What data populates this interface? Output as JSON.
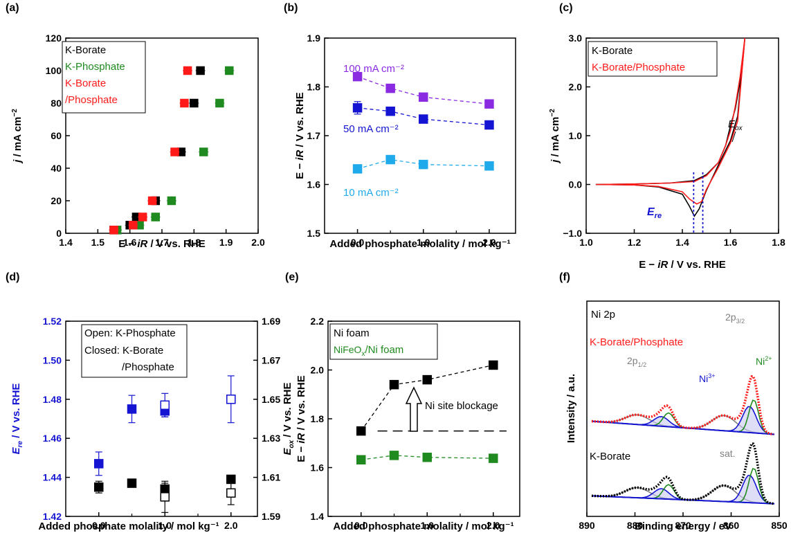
{
  "chart_data": [
    {
      "id": "a",
      "panel_label": "(a)",
      "type": "scatter",
      "xlabel": [
        "E − ",
        "iR",
        " / V vs. RHE"
      ],
      "ylabel": [
        "j",
        " / mA cm",
        "−2"
      ],
      "xlim": [
        1.4,
        2.0
      ],
      "ylim": [
        0,
        120
      ],
      "xticks": [
        "1.4",
        "1.5",
        "1.6",
        "1.7",
        "1.8",
        "1.9",
        "2.0"
      ],
      "yticks": [
        "0",
        "20",
        "40",
        "60",
        "80",
        "100",
        "120"
      ],
      "legend": [
        "K-Borate",
        "K-Phosphate",
        "K-Borate",
        "/Phosphate"
      ],
      "series": [
        {
          "name": "K-Borate",
          "color": "#000000",
          "x": [
            1.55,
            1.6,
            1.62,
            1.68,
            1.76,
            1.8,
            1.82
          ],
          "y": [
            2,
            5,
            10,
            20,
            50,
            80,
            100
          ]
        },
        {
          "name": "K-Phosphate",
          "color": "#1f8a1f",
          "x": [
            1.56,
            1.63,
            1.68,
            1.73,
            1.83,
            1.88,
            1.91
          ],
          "y": [
            2,
            5,
            10,
            20,
            50,
            80,
            100
          ]
        },
        {
          "name": "K-Borate/Phosphate",
          "color": "#ff1a1a",
          "x": [
            1.55,
            1.61,
            1.64,
            1.67,
            1.74,
            1.77,
            1.78
          ],
          "y": [
            2,
            5,
            10,
            20,
            50,
            80,
            100
          ]
        }
      ]
    },
    {
      "id": "b",
      "panel_label": "(b)",
      "type": "line",
      "xlabel": "Added phosphate molality / mol kg⁻¹",
      "ylabel": [
        "E − ",
        "iR",
        " / V vs. RHE"
      ],
      "xlim": [
        -0.5,
        2.4
      ],
      "ylim": [
        1.5,
        1.9
      ],
      "xticks": [
        "0.0",
        "0.5",
        "1.0",
        "1.5",
        "2.0"
      ],
      "yticks": [
        "1.5",
        "1.6",
        "1.7",
        "1.8",
        "1.9"
      ],
      "series": [
        {
          "name": "100 mA cm⁻²",
          "color": "#8a2be2",
          "x": [
            0,
            0.5,
            1,
            2
          ],
          "y": [
            1.821,
            1.797,
            1.779,
            1.765
          ]
        },
        {
          "name": "50 mA cm⁻²",
          "color": "#1414d2",
          "x": [
            0,
            0.5,
            1,
            2
          ],
          "y": [
            1.757,
            1.75,
            1.734,
            1.722
          ]
        },
        {
          "name": "10 mA cm⁻²",
          "color": "#1eaaeb",
          "x": [
            0,
            0.5,
            1,
            2
          ],
          "y": [
            1.632,
            1.651,
            1.641,
            1.638
          ]
        }
      ]
    },
    {
      "id": "c",
      "panel_label": "(c)",
      "type": "line",
      "xlabel": [
        "E − ",
        "iR",
        " / V vs. RHE"
      ],
      "ylabel": [
        "j",
        " / mA cm",
        "−2"
      ],
      "xlim": [
        1.0,
        1.8
      ],
      "ylim": [
        -1.0,
        3.0
      ],
      "xticks": [
        "1.0",
        "1.2",
        "1.4",
        "1.6",
        "1.8"
      ],
      "yticks": [
        "−1.0",
        "0.0",
        "1.0",
        "2.0",
        "3.0"
      ],
      "legend": [
        "K-Borate",
        "K-Borate/Phosphate"
      ],
      "annotations": {
        "ox": "E",
        "ox_sub": "ox",
        "re": "E",
        "re_sub": "re"
      },
      "series": [
        {
          "name": "K-Borate",
          "color": "#000000"
        },
        {
          "name": "K-Borate/Phosphate",
          "color": "#ff1a1a"
        }
      ]
    },
    {
      "id": "d",
      "panel_label": "(d)",
      "type": "scatter",
      "xlabel": "Added phosphate molality / mol kg⁻¹",
      "ylabel_left": [
        "E",
        "re",
        " / V vs. RHE"
      ],
      "ylabel_right": [
        "E",
        "ox",
        " / V vs. RHE"
      ],
      "xlim": [
        -0.5,
        2.4
      ],
      "ylim_left": [
        1.42,
        1.52
      ],
      "ylim_right": [
        1.59,
        1.69
      ],
      "xticks": [
        "0.0",
        "1.0",
        "2.0"
      ],
      "yticks_left": [
        "1.42",
        "1.44",
        "1.46",
        "1.48",
        "1.50",
        "1.52"
      ],
      "yticks_right": [
        "1.59",
        "1.61",
        "1.63",
        "1.65",
        "1.67",
        "1.69"
      ],
      "legend": [
        "Open: K-Phosphate",
        "Closed: K-Borate",
        "/Phosphate"
      ],
      "series": [
        {
          "name": "E_re K-Borate/Phosphate",
          "color": "#1414d2",
          "filled": true,
          "x": [
            0,
            0.5,
            1,
            2
          ],
          "y": [
            1.447,
            1.475,
            1.474,
            1.48
          ]
        },
        {
          "name": "E_re K-Phosphate",
          "color": "#1414d2",
          "filled": false,
          "x": [
            1,
            2
          ],
          "y": [
            1.477,
            1.48
          ]
        },
        {
          "name": "E_ox K-Borate/Phosphate",
          "color": "#000000",
          "filled": true,
          "x": [
            0,
            0.5,
            1,
            2
          ],
          "y": [
            1.435,
            1.437,
            1.434,
            1.439
          ]
        },
        {
          "name": "E_ox K-Phosphate",
          "color": "#000000",
          "filled": false,
          "x": [
            1,
            2
          ],
          "y": [
            1.43,
            1.432
          ]
        }
      ]
    },
    {
      "id": "e",
      "panel_label": "(e)",
      "type": "line",
      "xlabel": "Added phosphate molality / mol kg⁻¹",
      "ylabel": [
        "E − ",
        "iR",
        " / V vs. RHE"
      ],
      "xlim": [
        -0.5,
        2.4
      ],
      "ylim": [
        1.4,
        2.2
      ],
      "xticks": [
        "0.0",
        "1.0",
        "2.0"
      ],
      "yticks": [
        "1.4",
        "1.6",
        "1.8",
        "2.0",
        "2.2"
      ],
      "legend": [
        "Ni foam",
        "NiFeOx/Ni foam"
      ],
      "annotation": "Ni site blockage",
      "series": [
        {
          "name": "Ni foam",
          "color": "#000000",
          "x": [
            0,
            0.5,
            1,
            2
          ],
          "y": [
            1.75,
            1.94,
            1.96,
            2.02
          ]
        },
        {
          "name": "NiFeOx/Ni foam",
          "color": "#1f8a1f",
          "x": [
            0,
            0.5,
            1,
            2
          ],
          "y": [
            1.632,
            1.65,
            1.642,
            1.638
          ]
        }
      ]
    },
    {
      "id": "f",
      "panel_label": "(f)",
      "type": "line",
      "xlabel": "Binding energy / eV",
      "ylabel": "Intensity / a.u.",
      "xlim": [
        890,
        850
      ],
      "xticks": [
        "890",
        "880",
        "870",
        "860",
        "850"
      ],
      "labels": {
        "title": "Ni 2p",
        "top": "K-Borate/Phosphate",
        "bottom": "K-Borate",
        "p12": "2p",
        "p12_sub": "1/2",
        "p32": "2p",
        "p32_sub": "3/2",
        "ni3": "Ni",
        "ni3_sup": "3+",
        "ni2": "Ni",
        "ni2_sup": "2+",
        "sat": "sat."
      }
    }
  ]
}
